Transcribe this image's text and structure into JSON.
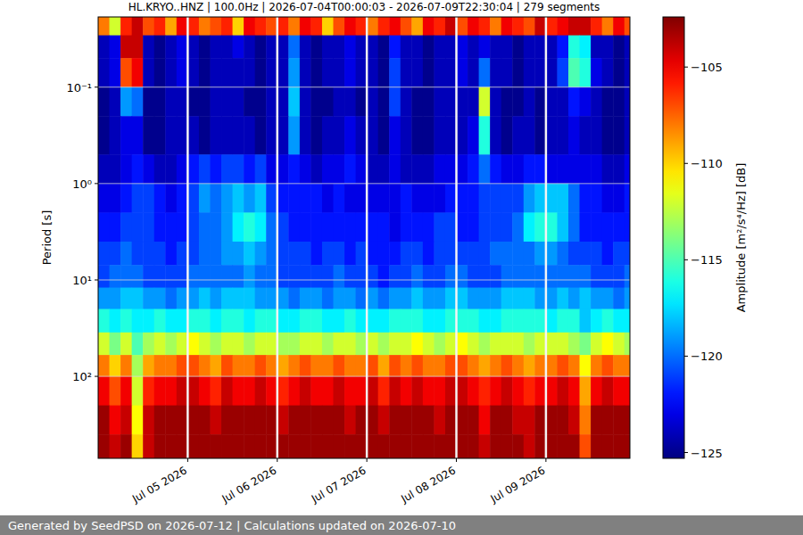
{
  "chart_data": {
    "type": "heatmap",
    "title": "HL.KRYO..HNZ | 100.0Hz | 2026-07-04T00:00:03 - 2026-07-09T22:30:04 | 279 segments",
    "y_label": "Period [s]",
    "colorbar_label": "Amplitude [m²/s⁴/Hz] [dB]",
    "footer": "Generated by SeedPSD on 2026-07-12 | Calculations updated on 2026-07-10",
    "log": "y",
    "grid": true,
    "xlim": [
      "2026-07-04T00:00:03",
      "2026-07-09T22:30:04"
    ],
    "ylim": [
      0.0187,
      708
    ],
    "xticks": [
      {
        "value": "2026-07-05T00:00:00",
        "label": "Jul 05 2026"
      },
      {
        "value": "2026-07-06T00:00:00",
        "label": "Jul 06 2026"
      },
      {
        "value": "2026-07-07T00:00:00",
        "label": "Jul 07 2026"
      },
      {
        "value": "2026-07-08T00:00:00",
        "label": "Jul 08 2026"
      },
      {
        "value": "2026-07-09T00:00:00",
        "label": "Jul 09 2026"
      }
    ],
    "yticks": [
      {
        "value": 0.1,
        "label": "10⁻¹"
      },
      {
        "value": 1,
        "label": "10⁰"
      },
      {
        "value": 10,
        "label": "10¹"
      },
      {
        "value": 100,
        "label": "10²"
      }
    ],
    "colorbar_lim": [
      -125.3,
      -102.4
    ],
    "colorbar_ticks": [
      {
        "value": -105,
        "label": "−105"
      },
      {
        "value": -110,
        "label": "−110"
      },
      {
        "value": -115,
        "label": "−115"
      },
      {
        "value": -120,
        "label": "−120"
      },
      {
        "value": -125,
        "label": "−125"
      }
    ],
    "x_edges": [
      "2026-07-04T00:00:00",
      "2026-07-04T03:00:00",
      "2026-07-04T06:00:00",
      "2026-07-04T09:00:00",
      "2026-07-04T12:00:00",
      "2026-07-04T15:00:00",
      "2026-07-04T18:00:00",
      "2026-07-04T21:00:00",
      "2026-07-05T00:00:00",
      "2026-07-05T03:00:00",
      "2026-07-05T06:00:00",
      "2026-07-05T09:00:00",
      "2026-07-05T12:00:00",
      "2026-07-05T15:00:00",
      "2026-07-05T18:00:00",
      "2026-07-05T21:00:00",
      "2026-07-06T00:00:00",
      "2026-07-06T03:00:00",
      "2026-07-06T06:00:00",
      "2026-07-06T09:00:00",
      "2026-07-06T12:00:00",
      "2026-07-06T15:00:00",
      "2026-07-06T18:00:00",
      "2026-07-06T21:00:00",
      "2026-07-07T00:00:00",
      "2026-07-07T03:00:00",
      "2026-07-07T06:00:00",
      "2026-07-07T09:00:00",
      "2026-07-07T12:00:00",
      "2026-07-07T15:00:00",
      "2026-07-07T18:00:00",
      "2026-07-07T21:00:00",
      "2026-07-08T00:00:00",
      "2026-07-08T03:00:00",
      "2026-07-08T06:00:00",
      "2026-07-08T09:00:00",
      "2026-07-08T12:00:00",
      "2026-07-08T15:00:00",
      "2026-07-08T18:00:00",
      "2026-07-08T21:00:00",
      "2026-07-09T00:00:00",
      "2026-07-09T03:00:00",
      "2026-07-09T06:00:00",
      "2026-07-09T09:00:00",
      "2026-07-09T12:00:00",
      "2026-07-09T15:00:00",
      "2026-07-09T18:00:00",
      "2026-07-09T21:00:00",
      "2026-07-09T22:30:00"
    ],
    "y_edges": [
      0.0187,
      0.029,
      0.05,
      0.1,
      0.2,
      0.5,
      1,
      2,
      4,
      7,
      12,
      20,
      35,
      60,
      100,
      200,
      400,
      708
    ],
    "cells": [
      [
        -108,
        -112,
        -106,
        -104,
        -107,
        -106,
        -109,
        -105,
        -106,
        -108,
        -107,
        -106,
        -110,
        -105,
        -106,
        -107,
        -106,
        -108,
        -105,
        -106,
        -110,
        -107,
        -105,
        -106,
        -108,
        -106,
        -105,
        -107,
        -109,
        -105,
        -106,
        -104,
        -107,
        -105,
        -106,
        -108,
        -105,
        -106,
        -107,
        -104,
        -106,
        -105,
        -104,
        -104,
        -106,
        -108,
        -105,
        -107
      ],
      [
        -124,
        -123,
        -104,
        -104,
        -124,
        -125,
        -124,
        -123,
        -124,
        -125,
        -124,
        -124,
        -123,
        -124,
        -125,
        -124,
        -124,
        -120,
        -124,
        -125,
        -124,
        -124,
        -123,
        -124,
        -124,
        -125,
        -122,
        -124,
        -124,
        -125,
        -124,
        -124,
        -123,
        -124,
        -123,
        -124,
        -124,
        -125,
        -124,
        -124,
        -124,
        -122,
        -116,
        -117,
        -124,
        -124,
        -125,
        -124
      ],
      [
        -124,
        -123,
        -107,
        -105,
        -124,
        -125,
        -124,
        -123,
        -124,
        -125,
        -124,
        -124,
        -124,
        -124,
        -125,
        -124,
        -124,
        -119,
        -124,
        -125,
        -124,
        -124,
        -123,
        -124,
        -124,
        -125,
        -121,
        -124,
        -124,
        -125,
        -124,
        -124,
        -123,
        -124,
        -120,
        -124,
        -124,
        -125,
        -124,
        -124,
        -124,
        -121,
        -115,
        -116,
        -123,
        -124,
        -125,
        -124
      ],
      [
        -125,
        -124,
        -119,
        -120,
        -125,
        -125,
        -124,
        -124,
        -125,
        -125,
        -124,
        -124,
        -124,
        -125,
        -125,
        -124,
        -124,
        -118,
        -124,
        -125,
        -125,
        -124,
        -124,
        -125,
        -124,
        -125,
        -121,
        -124,
        -125,
        -125,
        -124,
        -124,
        -124,
        -124,
        -112,
        -124,
        -125,
        -125,
        -124,
        -125,
        -124,
        -124,
        -122,
        -123,
        -124,
        -125,
        -125,
        -124
      ],
      [
        -125,
        -124,
        -123,
        -123,
        -125,
        -125,
        -124,
        -124,
        -124,
        -125,
        -124,
        -124,
        -124,
        -124,
        -125,
        -124,
        -124,
        -119,
        -124,
        -125,
        -124,
        -124,
        -123,
        -124,
        -124,
        -125,
        -123,
        -124,
        -125,
        -125,
        -124,
        -124,
        -124,
        -123,
        -116,
        -124,
        -125,
        -124,
        -124,
        -125,
        -124,
        -124,
        -123,
        -124,
        -124,
        -125,
        -125,
        -124
      ],
      [
        -124,
        -124,
        -123,
        -122,
        -123,
        -124,
        -124,
        -123,
        -122,
        -121,
        -122,
        -121,
        -121,
        -122,
        -121,
        -123,
        -123,
        -122,
        -123,
        -124,
        -123,
        -123,
        -122,
        -123,
        -124,
        -124,
        -123,
        -124,
        -124,
        -124,
        -123,
        -123,
        -123,
        -122,
        -120,
        -122,
        -123,
        -123,
        -122,
        -122,
        -123,
        -123,
        -123,
        -123,
        -123,
        -124,
        -124,
        -123
      ],
      [
        -123,
        -123,
        -122,
        -121,
        -121,
        -122,
        -123,
        -122,
        -121,
        -119,
        -120,
        -119,
        -118,
        -119,
        -118,
        -121,
        -122,
        -122,
        -122,
        -122,
        -123,
        -122,
        -123,
        -123,
        -123,
        -123,
        -123,
        -122,
        -123,
        -123,
        -123,
        -122,
        -122,
        -122,
        -121,
        -121,
        -121,
        -121,
        -119,
        -118,
        -118,
        -118,
        -120,
        -122,
        -122,
        -123,
        -123,
        -122
      ],
      [
        -122,
        -122,
        -121,
        -121,
        -121,
        -122,
        -122,
        -122,
        -121,
        -120,
        -120,
        -119,
        -117,
        -116,
        -117,
        -120,
        -121,
        -122,
        -122,
        -122,
        -122,
        -122,
        -122,
        -122,
        -122,
        -122,
        -123,
        -122,
        -122,
        -122,
        -121,
        -121,
        -122,
        -122,
        -121,
        -121,
        -121,
        -120,
        -117,
        -116,
        -116,
        -118,
        -120,
        -122,
        -122,
        -122,
        -122,
        -122
      ],
      [
        -121,
        -121,
        -120,
        -121,
        -121,
        -121,
        -122,
        -121,
        -121,
        -120,
        -120,
        -119,
        -119,
        -118,
        -119,
        -120,
        -121,
        -121,
        -121,
        -122,
        -121,
        -121,
        -122,
        -121,
        -122,
        -122,
        -122,
        -121,
        -121,
        -122,
        -121,
        -121,
        -121,
        -121,
        -121,
        -120,
        -120,
        -120,
        -120,
        -119,
        -119,
        -120,
        -121,
        -121,
        -121,
        -122,
        -121,
        -121
      ],
      [
        -121,
        -120,
        -120,
        -120,
        -121,
        -121,
        -121,
        -121,
        -120,
        -120,
        -120,
        -120,
        -120,
        -119,
        -120,
        -120,
        -121,
        -121,
        -121,
        -121,
        -121,
        -120,
        -121,
        -121,
        -121,
        -122,
        -121,
        -121,
        -120,
        -121,
        -121,
        -120,
        -120,
        -121,
        -121,
        -121,
        -120,
        -120,
        -120,
        -120,
        -120,
        -120,
        -120,
        -120,
        -121,
        -121,
        -121,
        -120
      ],
      [
        -119,
        -119,
        -118,
        -118,
        -119,
        -119,
        -120,
        -119,
        -119,
        -118,
        -119,
        -118,
        -118,
        -118,
        -119,
        -119,
        -119,
        -120,
        -119,
        -119,
        -120,
        -119,
        -119,
        -120,
        -119,
        -120,
        -119,
        -119,
        -118,
        -119,
        -119,
        -118,
        -118,
        -119,
        -119,
        -119,
        -118,
        -118,
        -118,
        -119,
        -119,
        -118,
        -119,
        -118,
        -119,
        -119,
        -120,
        -119
      ],
      [
        -116,
        -117,
        -116,
        -117,
        -117,
        -116,
        -117,
        -117,
        -116,
        -116,
        -117,
        -116,
        -116,
        -117,
        -116,
        -116,
        -117,
        -117,
        -116,
        -116,
        -117,
        -117,
        -116,
        -117,
        -117,
        -117,
        -116,
        -116,
        -116,
        -117,
        -117,
        -116,
        -116,
        -116,
        -117,
        -117,
        -116,
        -116,
        -116,
        -116,
        -117,
        -116,
        -116,
        -118,
        -117,
        -116,
        -117,
        -117
      ],
      [
        -112,
        -114,
        -112,
        -115,
        -113,
        -112,
        -113,
        -112,
        -111,
        -112,
        -113,
        -112,
        -112,
        -113,
        -112,
        -112,
        -113,
        -113,
        -112,
        -112,
        -113,
        -112,
        -112,
        -113,
        -112,
        -113,
        -112,
        -112,
        -111,
        -112,
        -113,
        -112,
        -111,
        -112,
        -113,
        -112,
        -112,
        -112,
        -113,
        -112,
        -112,
        -112,
        -113,
        -114,
        -112,
        -111,
        -112,
        -113
      ],
      [
        -108,
        -110,
        -108,
        -113,
        -109,
        -108,
        -108,
        -107,
        -107,
        -108,
        -109,
        -107,
        -108,
        -108,
        -107,
        -108,
        -109,
        -108,
        -107,
        -108,
        -108,
        -107,
        -108,
        -108,
        -107,
        -109,
        -107,
        -108,
        -107,
        -108,
        -108,
        -107,
        -107,
        -108,
        -109,
        -108,
        -107,
        -108,
        -109,
        -108,
        -108,
        -107,
        -108,
        -111,
        -108,
        -107,
        -108,
        -108
      ],
      [
        -105,
        -107,
        -105,
        -112,
        -106,
        -105,
        -105,
        -104,
        -104,
        -105,
        -106,
        -104,
        -105,
        -105,
        -104,
        -105,
        -106,
        -105,
        -104,
        -105,
        -105,
        -104,
        -105,
        -105,
        -104,
        -106,
        -104,
        -105,
        -104,
        -105,
        -105,
        -104,
        -104,
        -105,
        -106,
        -105,
        -104,
        -105,
        -106,
        -105,
        -105,
        -104,
        -105,
        -109,
        -105,
        -104,
        -105,
        -105
      ],
      [
        -103,
        -105,
        -104,
        -111,
        -104,
        -103,
        -103,
        -103,
        -103,
        -103,
        -104,
        -103,
        -103,
        -103,
        -103,
        -103,
        -104,
        -103,
        -103,
        -103,
        -103,
        -103,
        -104,
        -103,
        -103,
        -104,
        -103,
        -103,
        -103,
        -103,
        -104,
        -103,
        -103,
        -103,
        -105,
        -103,
        -103,
        -104,
        -104,
        -103,
        -103,
        -103,
        -104,
        -108,
        -103,
        -103,
        -103,
        -103
      ],
      [
        -103,
        -104,
        -103,
        -110,
        -104,
        -103,
        -103,
        -103,
        -103,
        -103,
        -103,
        -103,
        -103,
        -103,
        -103,
        -103,
        -103,
        -103,
        -103,
        -103,
        -103,
        -103,
        -103,
        -103,
        -103,
        -103,
        -103,
        -103,
        -103,
        -103,
        -103,
        -103,
        -103,
        -103,
        -104,
        -103,
        -103,
        -103,
        -104,
        -103,
        -103,
        -103,
        -103,
        -107,
        -103,
        -103,
        -103,
        -103
      ]
    ]
  }
}
